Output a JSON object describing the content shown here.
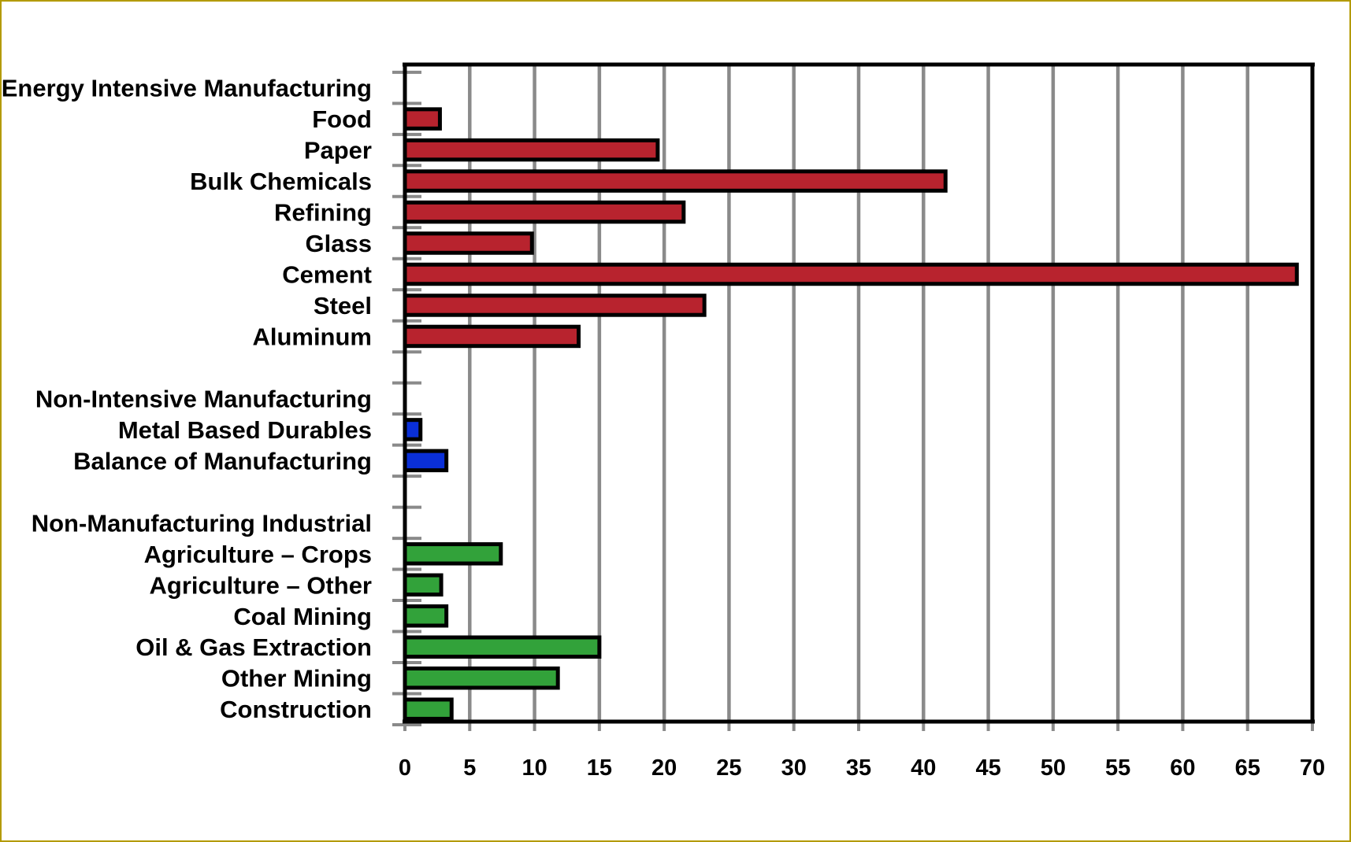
{
  "chart_data": {
    "type": "bar",
    "orientation": "horizontal",
    "xlim": [
      0,
      70
    ],
    "xticks": [
      "0",
      "5",
      "10",
      "15",
      "20",
      "25",
      "30",
      "35",
      "40",
      "45",
      "50",
      "55",
      "60",
      "65",
      "70"
    ],
    "grid": true,
    "legend": "none",
    "colors": {
      "energy_intensive": "#b8232e",
      "non_intensive": "#0a2fd8",
      "non_manufacturing": "#32a23a",
      "grid": "#8a8a8a",
      "axis": "#000000"
    },
    "rows": [
      {
        "label": "Energy Intensive Manufacturing",
        "value": null,
        "group": "header"
      },
      {
        "label": "Food",
        "value": 2.7,
        "group": "energy_intensive"
      },
      {
        "label": "Paper",
        "value": 19.5,
        "group": "energy_intensive"
      },
      {
        "label": "Bulk Chemicals",
        "value": 41.7,
        "group": "energy_intensive"
      },
      {
        "label": "Refining",
        "value": 21.5,
        "group": "energy_intensive"
      },
      {
        "label": "Glass",
        "value": 9.8,
        "group": "energy_intensive"
      },
      {
        "label": "Cement",
        "value": 68.8,
        "group": "energy_intensive"
      },
      {
        "label": "Steel",
        "value": 23.1,
        "group": "energy_intensive"
      },
      {
        "label": "Aluminum",
        "value": 13.4,
        "group": "energy_intensive"
      },
      {
        "label": "",
        "value": null,
        "group": "spacer"
      },
      {
        "label": "Non-Intensive Manufacturing",
        "value": null,
        "group": "header"
      },
      {
        "label": "Metal Based Durables",
        "value": 1.2,
        "group": "non_intensive"
      },
      {
        "label": "Balance of Manufacturing",
        "value": 3.2,
        "group": "non_intensive"
      },
      {
        "label": "",
        "value": null,
        "group": "spacer"
      },
      {
        "label": "Non-Manufacturing Industrial",
        "value": null,
        "group": "header"
      },
      {
        "label": "Agriculture – Crops",
        "value": 7.4,
        "group": "non_manufacturing"
      },
      {
        "label": "Agriculture – Other",
        "value": 2.8,
        "group": "non_manufacturing"
      },
      {
        "label": "Coal Mining",
        "value": 3.2,
        "group": "non_manufacturing"
      },
      {
        "label": "Oil & Gas Extraction",
        "value": 15.0,
        "group": "non_manufacturing"
      },
      {
        "label": "Other Mining",
        "value": 11.8,
        "group": "non_manufacturing"
      },
      {
        "label": "Construction",
        "value": 3.6,
        "group": "non_manufacturing"
      }
    ]
  }
}
